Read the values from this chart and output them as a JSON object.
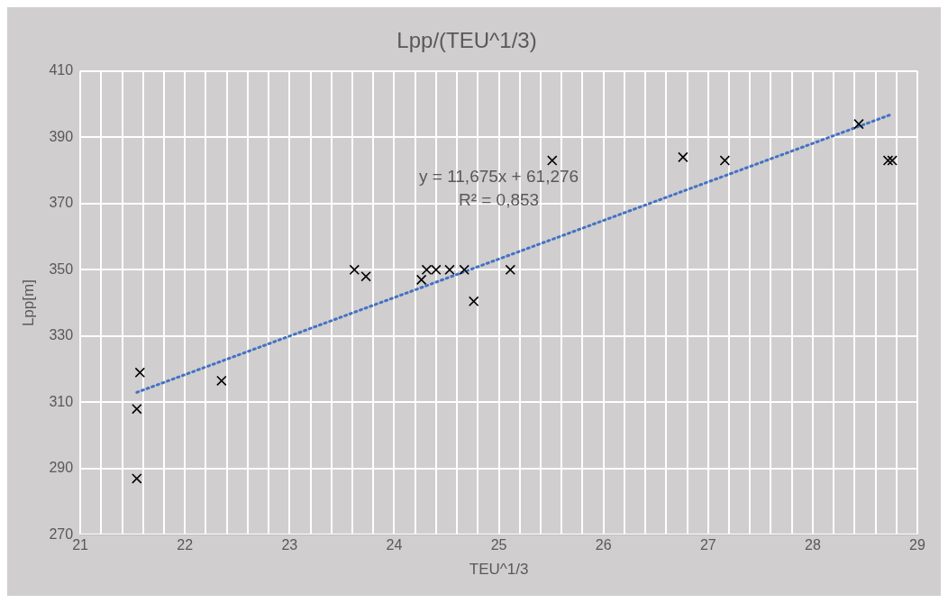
{
  "chart_data": {
    "type": "scatter",
    "title": "Lpp/(TEU^1/3)",
    "xlabel": "TEU^1/3",
    "ylabel": "Lpp[m]",
    "series": [
      {
        "type": "scatter",
        "color": "#000000",
        "marker": "cross",
        "x": [
          21.54,
          21.54,
          21.57,
          22.35,
          23.62,
          23.73,
          24.26,
          24.31,
          24.4,
          24.53,
          24.67,
          24.76,
          25.11,
          25.51,
          26.76,
          27.16,
          28.44,
          28.72,
          28.76
        ],
        "values": [
          287,
          308,
          319,
          316.5,
          350,
          348,
          347,
          350,
          350,
          350,
          350,
          340.5,
          350,
          383,
          384,
          383,
          394,
          383,
          383
        ]
      },
      {
        "type": "line",
        "color": "#4472c4",
        "line_style": "dotted",
        "marker": "none",
        "x": [
          21.54,
          28.76
        ],
        "values": [
          313,
          397
        ]
      }
    ],
    "annotations": [
      "y = 11,675x + 61,276",
      "R² = 0,853"
    ],
    "xlim": [
      21,
      29
    ],
    "ylim": [
      270,
      410
    ],
    "xticks": [
      21,
      {
        "value": 21.2,
        "label": null
      },
      {
        "value": 21.4,
        "label": null
      },
      {
        "value": 21.6,
        "label": null
      },
      {
        "value": 21.8,
        "label": null
      },
      22,
      {
        "value": 22.2,
        "label": null
      },
      {
        "value": 22.4,
        "label": null
      },
      {
        "value": 22.6,
        "label": null
      },
      {
        "value": 22.8,
        "label": null
      },
      23,
      {
        "value": 23.2,
        "label": null
      },
      {
        "value": 23.4,
        "label": null
      },
      {
        "value": 23.6,
        "label": null
      },
      {
        "value": 23.8,
        "label": null
      },
      24,
      {
        "value": 24.2,
        "label": null
      },
      {
        "value": 24.4,
        "label": null
      },
      {
        "value": 24.6,
        "label": null
      },
      {
        "value": 24.8,
        "label": null
      },
      25,
      {
        "value": 25.2,
        "label": null
      },
      {
        "value": 25.4,
        "label": null
      },
      {
        "value": 25.6,
        "label": null
      },
      {
        "value": 25.8,
        "label": null
      },
      26,
      {
        "value": 26.2,
        "label": null
      },
      {
        "value": 26.4,
        "label": null
      },
      {
        "value": 26.6,
        "label": null
      },
      {
        "value": 26.8,
        "label": null
      },
      27,
      {
        "value": 27.2,
        "label": null
      },
      {
        "value": 27.4,
        "label": null
      },
      {
        "value": 27.6,
        "label": null
      },
      {
        "value": 27.8,
        "label": null
      },
      28,
      {
        "value": 28.2,
        "label": null
      },
      {
        "value": 28.4,
        "label": null
      },
      {
        "value": 28.6,
        "label": null
      },
      {
        "value": 28.8,
        "label": null
      },
      29
    ],
    "yticks": [
      270,
      290,
      310,
      330,
      350,
      370,
      390,
      410
    ],
    "grid": true,
    "legend": false
  }
}
